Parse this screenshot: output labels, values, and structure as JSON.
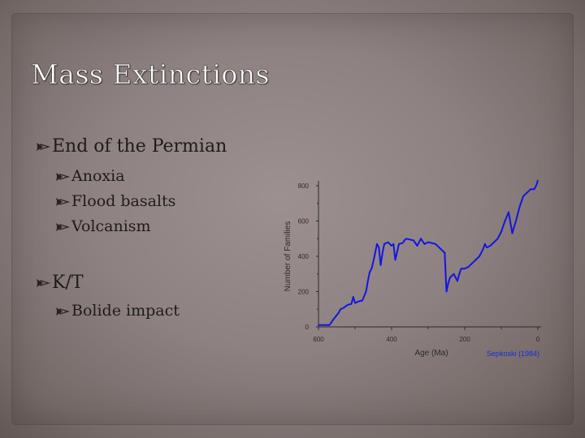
{
  "slide": {
    "title": "Mass Extinctions",
    "bullets": [
      {
        "label": "End of the Permian",
        "level": 1,
        "icon": "bullet-icon"
      },
      {
        "label": "Anoxia",
        "level": 2,
        "icon": "bullet-icon"
      },
      {
        "label": "Flood basalts",
        "level": 2,
        "icon": "bullet-icon"
      },
      {
        "label": "Volcanism",
        "level": 2,
        "icon": "bullet-icon"
      },
      {
        "label": "K/T",
        "level": 1,
        "icon": "bullet-icon"
      },
      {
        "label": "Bolide impact",
        "level": 2,
        "icon": "bullet-icon"
      }
    ]
  },
  "chart_data": {
    "type": "line",
    "xlabel": "Age (Ma)",
    "ylabel": "Number of Families",
    "credit": "Sepkoski (1984)",
    "xlim": [
      600,
      0
    ],
    "ylim": [
      0,
      800
    ],
    "x_ticks": [
      "600",
      "400",
      "200",
      "0"
    ],
    "y_ticks": [
      "0",
      "200",
      "400",
      "600",
      "800"
    ],
    "series": [
      {
        "color": "#1515e0",
        "x": [
          600,
          580,
          570,
          560,
          545,
          540,
          530,
          520,
          510,
          505,
          500,
          495,
          490,
          480,
          470,
          465,
          460,
          455,
          450,
          440,
          435,
          430,
          425,
          420,
          410,
          400,
          395,
          390,
          380,
          370,
          365,
          360,
          350,
          340,
          330,
          320,
          310,
          300,
          290,
          280,
          270,
          255,
          250,
          245,
          240,
          230,
          220,
          215,
          210,
          200,
          190,
          180,
          170,
          160,
          150,
          145,
          140,
          130,
          120,
          110,
          100,
          90,
          80,
          70,
          66,
          60,
          50,
          40,
          30,
          20,
          10,
          5,
          0
        ],
        "y": [
          10,
          10,
          10,
          40,
          80,
          100,
          110,
          125,
          130,
          170,
          135,
          140,
          145,
          150,
          200,
          260,
          310,
          330,
          370,
          470,
          450,
          350,
          420,
          470,
          480,
          460,
          470,
          380,
          470,
          475,
          490,
          500,
          495,
          490,
          460,
          500,
          470,
          480,
          475,
          470,
          450,
          420,
          200,
          250,
          280,
          300,
          260,
          300,
          330,
          330,
          340,
          360,
          380,
          400,
          440,
          470,
          450,
          460,
          480,
          500,
          540,
          600,
          650,
          530,
          560,
          600,
          680,
          740,
          760,
          780,
          780,
          800,
          830
        ]
      }
    ]
  }
}
